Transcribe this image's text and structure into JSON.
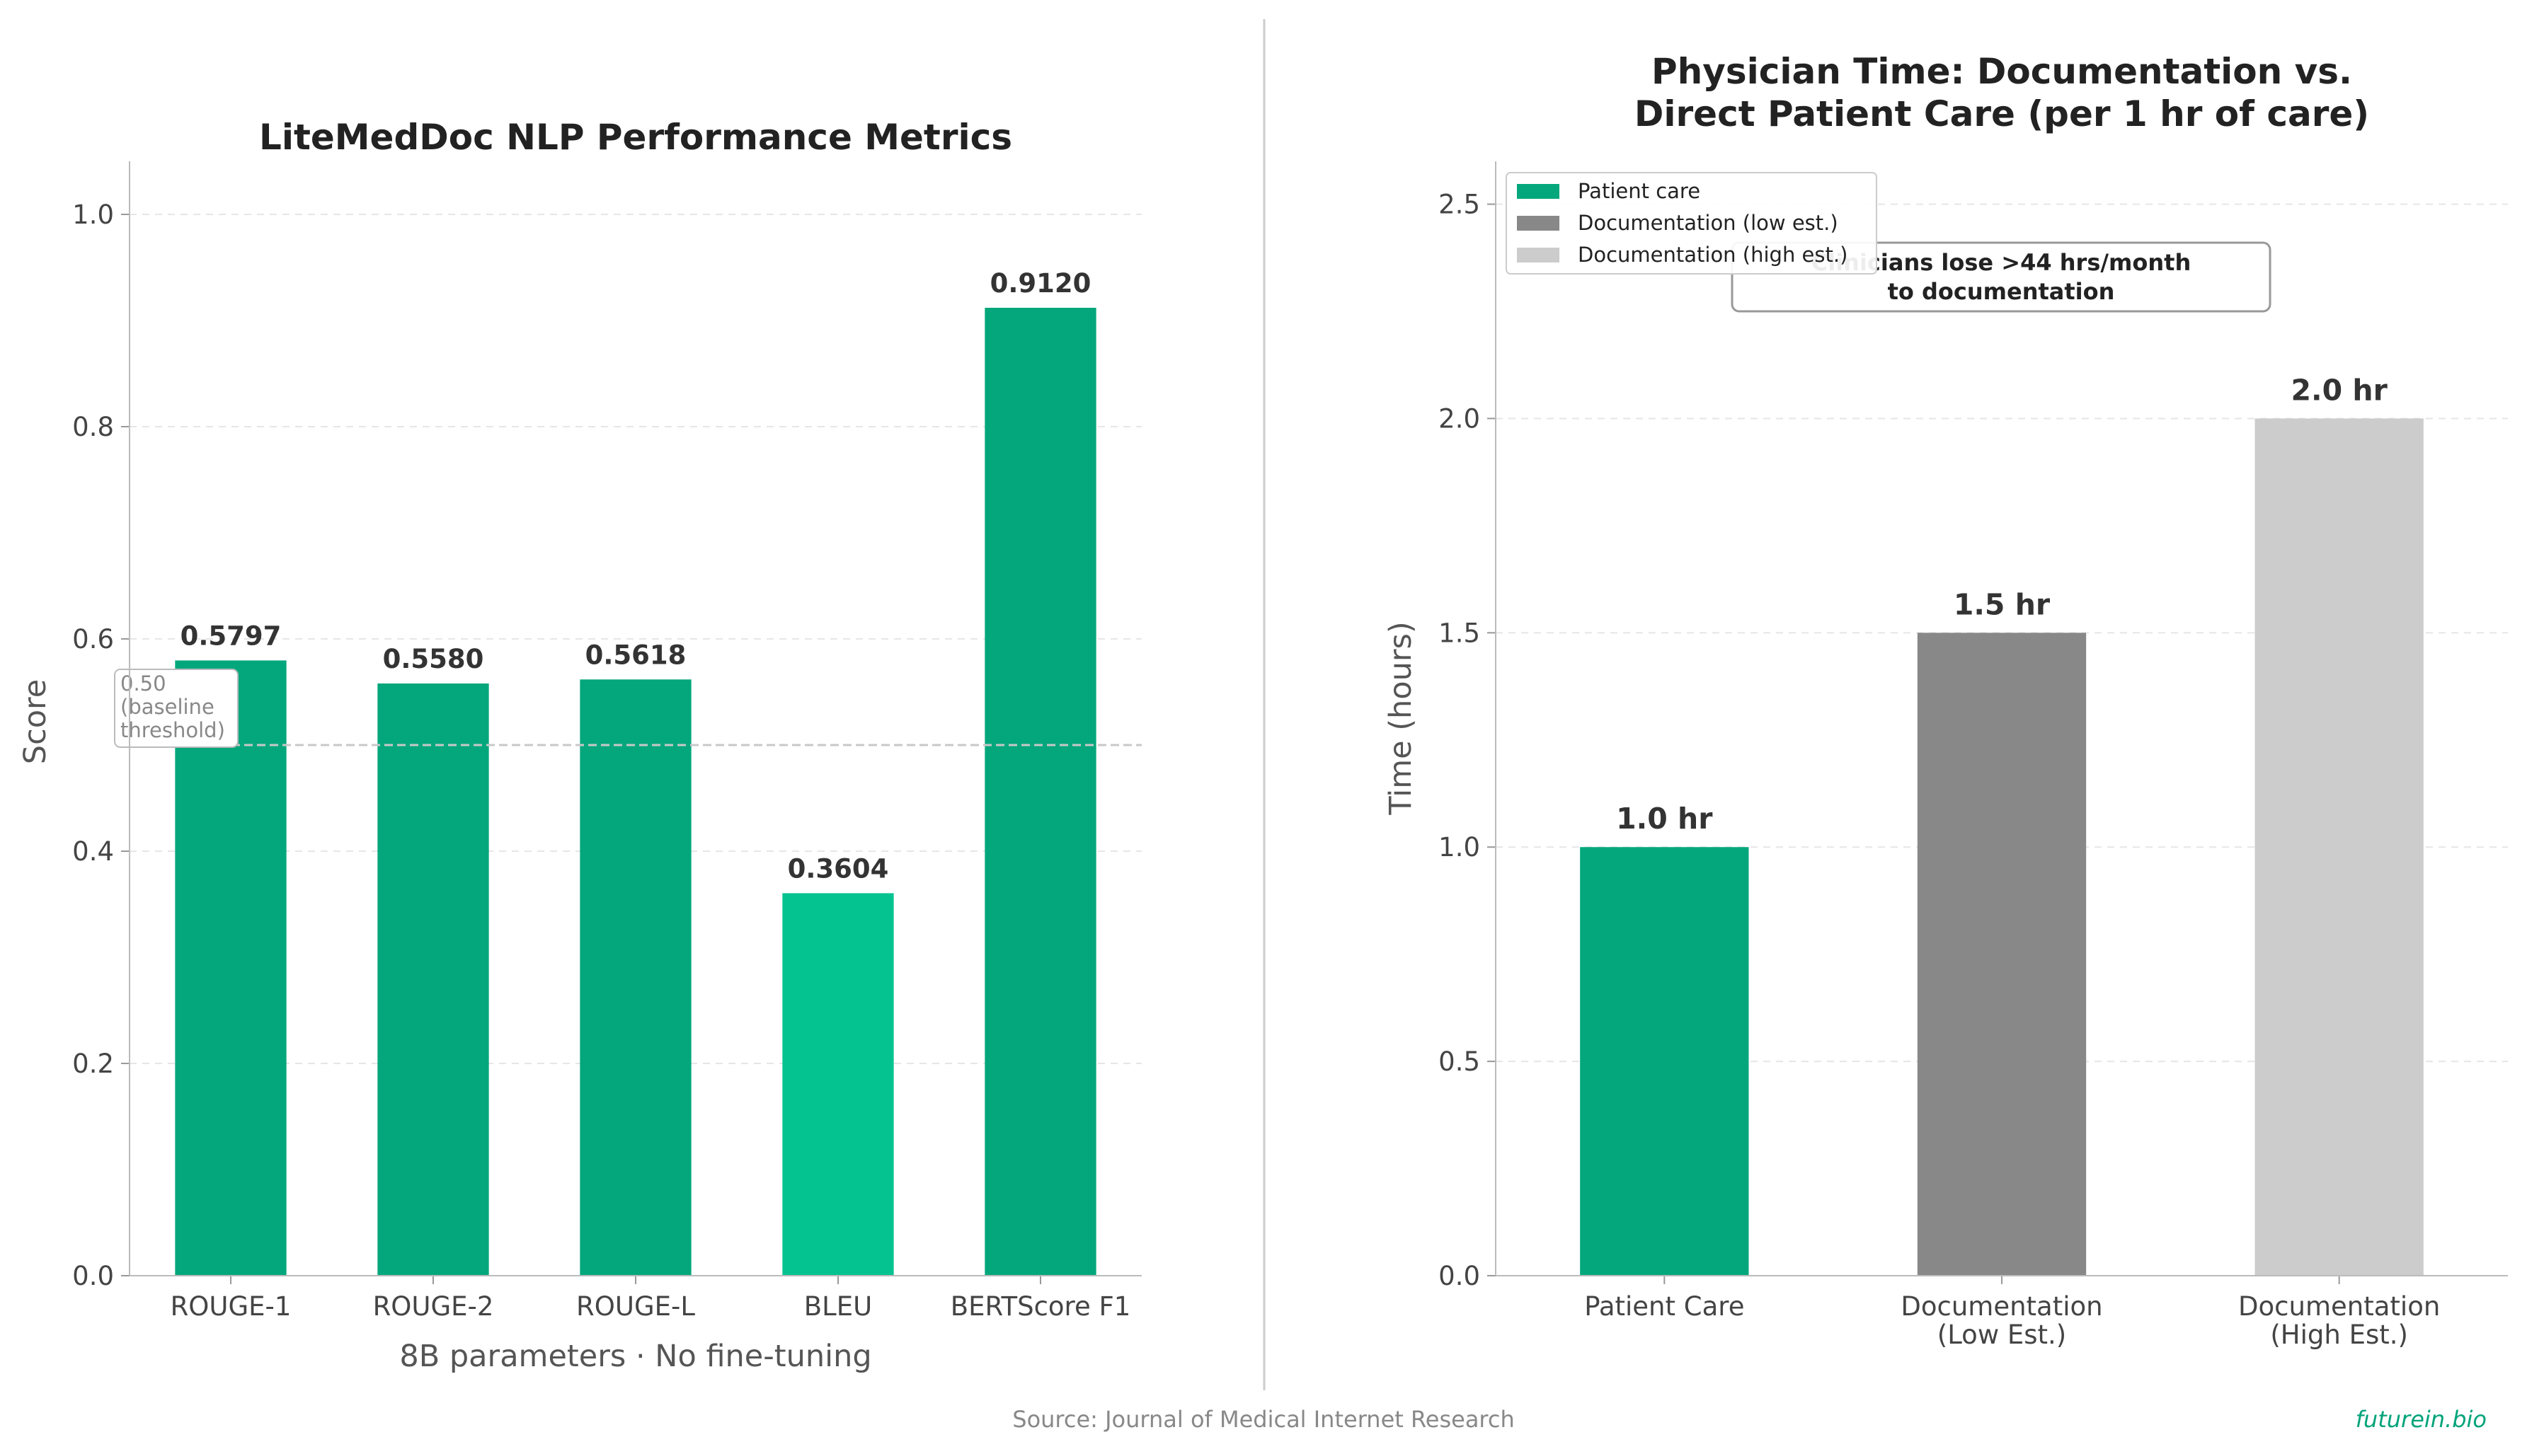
{
  "chart_data": [
    {
      "type": "bar",
      "title": "LiteMedDoc NLP Performance Metrics",
      "xlabel": "8B parameters · No fine-tuning",
      "ylabel": "Score",
      "categories": [
        "ROUGE-1",
        "ROUGE-2",
        "ROUGE-L",
        "BLEU",
        "BERTScore F1"
      ],
      "values": [
        0.5797,
        0.558,
        0.5618,
        0.3604,
        0.912
      ],
      "value_labels": [
        "0.5797",
        "0.5580",
        "0.5618",
        "0.3604",
        "0.9120"
      ],
      "bar_colors": [
        "#04a77c",
        "#04a77c",
        "#04a77c",
        "#05c391",
        "#04a77c"
      ],
      "ylim": [
        0,
        1.05
      ],
      "yticks": [
        0.0,
        0.2,
        0.4,
        0.6,
        0.8,
        1.0
      ],
      "ytick_labels": [
        "0.0",
        "0.2",
        "0.4",
        "0.6",
        "0.8",
        "1.0"
      ],
      "grid": true,
      "reference_line": {
        "value": 0.5,
        "label": [
          "0.50",
          "(baseline",
          "threshold)"
        ]
      }
    },
    {
      "type": "bar",
      "title": [
        "Physician Time: Documentation vs.",
        "Direct Patient Care (per 1 hr of care)"
      ],
      "xlabel": "",
      "ylabel": "Time (hours)",
      "categories": [
        [
          "Patient Care"
        ],
        [
          "Documentation",
          "(Low Est.)"
        ],
        [
          "Documentation",
          "(High Est.)"
        ]
      ],
      "values": [
        1.0,
        1.5,
        2.0
      ],
      "value_labels": [
        "1.0 hr",
        "1.5 hr",
        "2.0 hr"
      ],
      "bar_colors": [
        "#04a77c",
        "#888888",
        "#cccccc"
      ],
      "ylim": [
        0,
        2.6
      ],
      "yticks": [
        0.0,
        0.5,
        1.0,
        1.5,
        2.0,
        2.5
      ],
      "ytick_labels": [
        "0.0",
        "0.5",
        "1.0",
        "1.5",
        "2.0",
        "2.5"
      ],
      "grid": true,
      "legend": {
        "placement": "top-left",
        "entries": [
          {
            "label": "Patient care",
            "color": "#04a77c"
          },
          {
            "label": "Documentation (low est.)",
            "color": "#888888"
          },
          {
            "label": "Documentation (high est.)",
            "color": "#cccccc"
          }
        ]
      },
      "annotation": [
        "Clinicians lose >44 hrs/month",
        "to documentation"
      ]
    }
  ],
  "footer": {
    "source": "Source: Journal of Medical Internet Research",
    "brand": "futurein.bio"
  }
}
